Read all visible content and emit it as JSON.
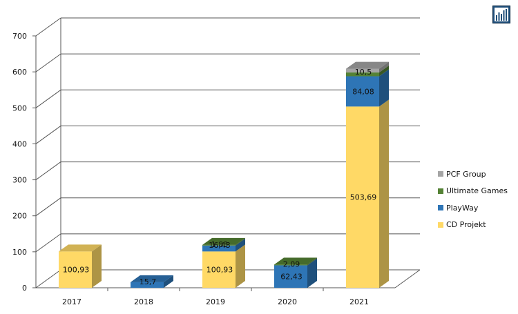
{
  "chart_data": {
    "type": "bar",
    "stacked": true,
    "three_d": true,
    "categories": [
      "2017",
      "2018",
      "2019",
      "2020",
      "2021"
    ],
    "series": [
      {
        "name": "CD Projekt",
        "color": "#FFD966",
        "values": [
          100.93,
          null,
          100.93,
          null,
          503.69
        ],
        "labels": [
          "100,93",
          "",
          "100,93",
          "",
          "503,69"
        ]
      },
      {
        "name": "PlayWay",
        "color": "#2E75B6",
        "values": [
          null,
          15.7,
          16.43,
          62.43,
          84.08
        ],
        "labels": [
          "",
          "15,7",
          "16,43",
          "62,43",
          "84,08"
        ]
      },
      {
        "name": "Ultimate Games",
        "color": "#548235",
        "values": [
          null,
          null,
          1.83,
          2.09,
          10.5
        ],
        "labels": [
          "",
          "",
          "1,83",
          "2,09",
          "10,5"
        ]
      },
      {
        "name": "PCF Group",
        "color": "#A5A5A5",
        "values": [
          null,
          null,
          null,
          null,
          10.5
        ],
        "labels": [
          "",
          "",
          "",
          "",
          ""
        ]
      }
    ],
    "yticks": [
      "0",
      "100",
      "200",
      "300",
      "400",
      "500",
      "600",
      "700"
    ],
    "ylim": [
      0,
      700
    ],
    "grid": true,
    "legend_position": "right"
  },
  "logo_icon": "bar-chart-logo-icon"
}
